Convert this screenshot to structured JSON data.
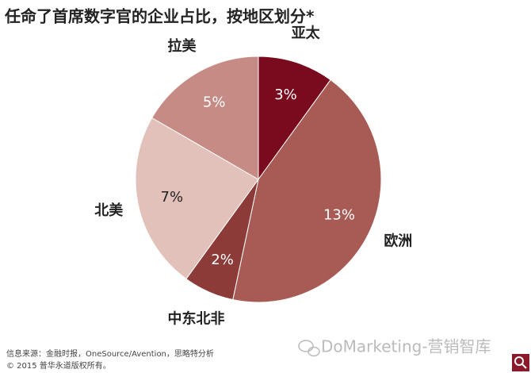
{
  "chart_data": {
    "type": "pie",
    "title": "任命了首席数字官的企业占比，按地区划分*",
    "categories": [
      "亚太",
      "欧洲",
      "中东北非",
      "北美",
      "拉美"
    ],
    "values": [
      3,
      13,
      2,
      7,
      5
    ],
    "value_labels": [
      "3%",
      "13%",
      "2%",
      "7%",
      "5%"
    ],
    "colors": [
      "#7a0b1e",
      "#a85a55",
      "#8c3b39",
      "#e2c1ba",
      "#c58b84"
    ],
    "source": "信息来源：金融时报，OneSource/Avention，思略特分析",
    "copyright": "© 2015 普华永道版权所有。",
    "watermark": "DoMarketing-营销智库"
  }
}
